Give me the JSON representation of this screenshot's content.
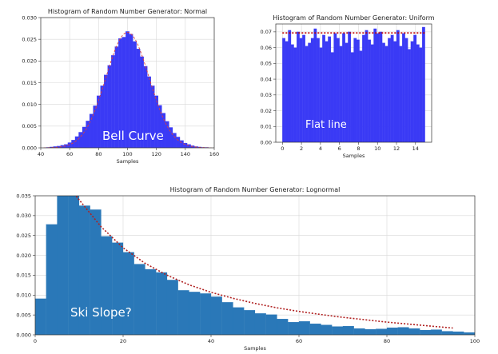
{
  "chart_data": [
    {
      "type": "bar",
      "title": "Histogram of Random Number Generator: Normal",
      "xlabel": "Samples",
      "ylabel": "",
      "xlim": [
        40,
        160
      ],
      "ylim": [
        0,
        0.03
      ],
      "xticks": [
        "40",
        "60",
        "80",
        "100",
        "120",
        "140",
        "160"
      ],
      "yticks": [
        "0.000",
        "0.005",
        "0.010",
        "0.015",
        "0.020",
        "0.025",
        "0.030"
      ],
      "grid": true,
      "annotation": "Bell Curve",
      "bar_color": "#3a3af5",
      "fit_color": "#d94040",
      "bin_width": 2.5,
      "x": [
        45,
        47.5,
        50,
        52.5,
        55,
        57.5,
        60,
        62.5,
        65,
        67.5,
        70,
        72.5,
        75,
        77.5,
        80,
        82.5,
        85,
        87.5,
        90,
        92.5,
        95,
        97.5,
        100,
        102.5,
        105,
        107.5,
        110,
        112.5,
        115,
        117.5,
        120,
        122.5,
        125,
        127.5,
        130,
        132.5,
        135,
        137.5,
        140,
        142.5,
        145,
        147.5,
        150,
        152.5,
        155
      ],
      "values": [
        0.0001,
        0.0002,
        0.0003,
        0.0004,
        0.0006,
        0.0008,
        0.0012,
        0.0018,
        0.0026,
        0.0036,
        0.0048,
        0.0062,
        0.0078,
        0.0097,
        0.012,
        0.0143,
        0.0168,
        0.019,
        0.0213,
        0.0233,
        0.0252,
        0.0255,
        0.0268,
        0.0262,
        0.0245,
        0.0228,
        0.021,
        0.0188,
        0.0164,
        0.0143,
        0.012,
        0.0098,
        0.008,
        0.0061,
        0.0047,
        0.0034,
        0.0025,
        0.0017,
        0.0011,
        0.0008,
        0.0005,
        0.0003,
        0.0002,
        0.0001,
        0.0001
      ]
    },
    {
      "type": "bar",
      "title": "Histogram of Random Number Generator: Uniform",
      "xlabel": "Samples",
      "ylabel": "",
      "xlim": [
        -0.7,
        15.7
      ],
      "ylim": [
        0,
        0.075
      ],
      "xticks": [
        "0",
        "2",
        "4",
        "6",
        "8",
        "10",
        "12",
        "14"
      ],
      "yticks": [
        "0.00",
        "0.01",
        "0.02",
        "0.03",
        "0.04",
        "0.05",
        "0.06",
        "0.07"
      ],
      "grid": true,
      "annotation": "Flat line",
      "bar_color": "#3a3af5",
      "fit_color": "#c00000",
      "fit_value": 0.0693,
      "bin_width": 0.3,
      "x": [
        0.15,
        0.45,
        0.75,
        1.05,
        1.35,
        1.65,
        1.95,
        2.25,
        2.55,
        2.85,
        3.15,
        3.45,
        3.75,
        4.05,
        4.35,
        4.65,
        4.95,
        5.25,
        5.55,
        5.85,
        6.15,
        6.45,
        6.75,
        7.05,
        7.35,
        7.65,
        7.95,
        8.25,
        8.55,
        8.85,
        9.15,
        9.45,
        9.75,
        10.05,
        10.35,
        10.65,
        10.95,
        11.25,
        11.55,
        11.85,
        12.15,
        12.45,
        12.75,
        13.05,
        13.35,
        13.65,
        13.95,
        14.25,
        14.55,
        14.85
      ],
      "values": [
        0.066,
        0.064,
        0.071,
        0.062,
        0.06,
        0.07,
        0.066,
        0.068,
        0.061,
        0.063,
        0.066,
        0.072,
        0.066,
        0.06,
        0.068,
        0.064,
        0.067,
        0.057,
        0.069,
        0.066,
        0.061,
        0.069,
        0.063,
        0.07,
        0.057,
        0.066,
        0.065,
        0.058,
        0.068,
        0.071,
        0.065,
        0.062,
        0.072,
        0.069,
        0.07,
        0.063,
        0.061,
        0.066,
        0.068,
        0.064,
        0.071,
        0.061,
        0.069,
        0.066,
        0.059,
        0.064,
        0.068,
        0.062,
        0.06,
        0.073
      ]
    },
    {
      "type": "bar",
      "title": "Histogram of Random Number Generator: Lognormal",
      "xlabel": "Samples",
      "ylabel": "",
      "xlim": [
        0,
        100
      ],
      "ylim": [
        0,
        0.035
      ],
      "xticks": [
        "0",
        "20",
        "40",
        "60",
        "80",
        "100"
      ],
      "yticks": [
        "0.000",
        "0.005",
        "0.010",
        "0.015",
        "0.020",
        "0.025",
        "0.030",
        "0.035"
      ],
      "grid": true,
      "annotation": "Ski Slope?",
      "bar_color": "#2a78b8",
      "fit_color": "#b02020",
      "bin_width": 2.5,
      "x": [
        1.25,
        3.75,
        6.25,
        8.75,
        11.25,
        13.75,
        16.25,
        18.75,
        21.25,
        23.75,
        26.25,
        28.75,
        31.25,
        33.75,
        36.25,
        38.75,
        41.25,
        43.75,
        46.25,
        48.75,
        51.25,
        53.75,
        56.25,
        58.75,
        61.25,
        63.75,
        66.25,
        68.75,
        71.25,
        73.75,
        76.25,
        78.75,
        81.25,
        83.75,
        86.25,
        88.75,
        91.25,
        93.75,
        96.25,
        98.75
      ],
      "values": [
        0.0091,
        0.0278,
        0.036,
        0.036,
        0.0325,
        0.0315,
        0.0248,
        0.0232,
        0.0208,
        0.0178,
        0.0165,
        0.0157,
        0.0138,
        0.0112,
        0.0108,
        0.0104,
        0.0096,
        0.0082,
        0.0069,
        0.0062,
        0.0054,
        0.0051,
        0.004,
        0.0032,
        0.0034,
        0.0028,
        0.0025,
        0.0021,
        0.0022,
        0.0016,
        0.0014,
        0.0015,
        0.0018,
        0.0019,
        0.0016,
        0.0012,
        0.0013,
        0.0009,
        0.0008,
        0.0006
      ],
      "fit_x": [
        8,
        10,
        15,
        20,
        25,
        30,
        35,
        40,
        45,
        50,
        55,
        60,
        65,
        70,
        75,
        80,
        85,
        90,
        95
      ],
      "fit_values": [
        0.0368,
        0.034,
        0.0272,
        0.0219,
        0.018,
        0.015,
        0.0126,
        0.0107,
        0.0092,
        0.0079,
        0.0068,
        0.0059,
        0.0051,
        0.0044,
        0.0038,
        0.0032,
        0.0027,
        0.0022,
        0.0017
      ]
    }
  ]
}
